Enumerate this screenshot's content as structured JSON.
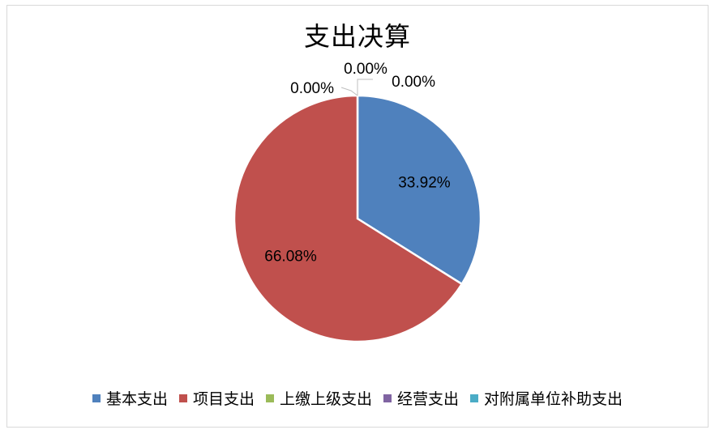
{
  "chart_data": {
    "type": "pie",
    "title": "支出决算",
    "categories": [
      "基本支出",
      "项目支出",
      "上缴上级支出",
      "经营支出",
      "对附属单位补助支出"
    ],
    "values": [
      33.92,
      66.08,
      0.0,
      0.0,
      0.0
    ],
    "labels": [
      "33.92%",
      "66.08%",
      "0.00%",
      "0.00%",
      "0.00%"
    ],
    "colors": [
      "#4f81bd",
      "#c0504d",
      "#9bbb59",
      "#8064a2",
      "#4bacc6"
    ],
    "legend_position": "bottom"
  }
}
